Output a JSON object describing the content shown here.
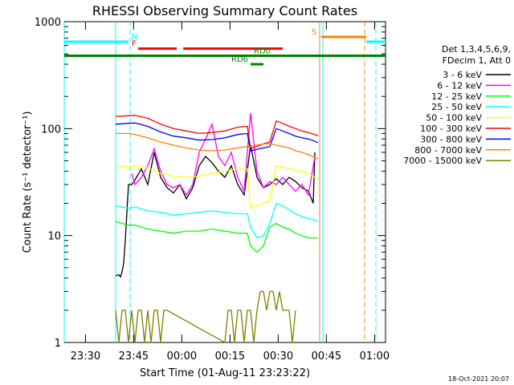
{
  "chart_data": {
    "type": "line",
    "title": "RHESSI Observing Summary Count Rates",
    "xlabel": "Start Time (01-Aug-11 23:23:22)",
    "ylabel": "Count Rate (s⁻¹ detector⁻¹)",
    "yscale": "log",
    "ylim": [
      1,
      1000
    ],
    "xlim_minutes": [
      0,
      100
    ],
    "x_unit": "minutes after 01-Aug-11 23:23:22",
    "x_ticks": [
      {
        "t": 6.6,
        "label": "23:30"
      },
      {
        "t": 21.6,
        "label": "23:45"
      },
      {
        "t": 36.6,
        "label": "00:00"
      },
      {
        "t": 51.6,
        "label": "00:15"
      },
      {
        "t": 66.6,
        "label": "00:30"
      },
      {
        "t": 81.6,
        "label": "00:45"
      },
      {
        "t": 96.6,
        "label": "01:00"
      }
    ],
    "y_ticks": [
      {
        "v": 1,
        "label": "1"
      },
      {
        "v": 10,
        "label": "10"
      },
      {
        "v": 100,
        "label": "100"
      },
      {
        "v": 1000,
        "label": "1000"
      }
    ],
    "legend": {
      "header1": "Det 1,3,4,5,6,9,",
      "header2": "FDecim 1, Att 0",
      "position": "right"
    },
    "series": [
      {
        "name": "3 - 6 keV",
        "color": "#000000",
        "x": [
          16,
          17,
          17.5,
          18,
          18.5,
          19,
          20,
          21,
          22,
          24,
          26,
          28,
          30,
          32,
          34,
          36,
          38,
          40,
          42,
          44,
          46,
          48,
          50,
          52,
          54,
          56,
          58,
          60,
          62,
          64,
          66,
          68,
          70,
          72,
          74,
          76,
          77.5,
          78
        ],
        "y": [
          4.2,
          4.3,
          4.1,
          4.6,
          5.5,
          9,
          30,
          30,
          33,
          42,
          30,
          60,
          35,
          28,
          25,
          30,
          22,
          28,
          45,
          55,
          48,
          40,
          35,
          45,
          30,
          24,
          70,
          35,
          28,
          30,
          34,
          30,
          35,
          32,
          28,
          26,
          20,
          60
        ]
      },
      {
        "name": "6 - 12 keV",
        "color": "#ff00ff",
        "x": [
          21,
          22,
          24,
          26,
          28,
          30,
          32,
          34,
          36,
          38,
          40,
          42,
          44,
          46,
          48,
          50,
          52,
          54,
          56,
          58,
          60,
          62,
          64,
          66,
          68,
          70,
          72,
          74,
          76,
          78
        ],
        "y": [
          38,
          30,
          35,
          45,
          65,
          40,
          30,
          28,
          30,
          24,
          30,
          60,
          80,
          110,
          55,
          45,
          60,
          35,
          26,
          140,
          40,
          28,
          32,
          30,
          35,
          30,
          26,
          30,
          24,
          55
        ]
      },
      {
        "name": "12 - 25 keV",
        "color": "#00ff00",
        "x": [
          16,
          20,
          22,
          26,
          30,
          34,
          38,
          42,
          46,
          50,
          54,
          57,
          58,
          60,
          62,
          64,
          66,
          68,
          70,
          72,
          74,
          76,
          78,
          79
        ],
        "y": [
          13.5,
          12.5,
          12.5,
          11.5,
          11,
          10.5,
          11,
          11,
          11.5,
          11,
          10.5,
          10.5,
          8,
          7,
          8,
          12,
          13,
          12,
          11.5,
          10.5,
          10,
          9.5,
          9.5,
          9.5
        ]
      },
      {
        "name": "25 - 50 keV",
        "color": "#00ffff",
        "x": [
          16,
          20,
          22,
          26,
          30,
          34,
          38,
          42,
          46,
          50,
          54,
          57,
          58,
          60,
          62,
          64,
          66,
          68,
          70,
          72,
          74,
          76,
          78,
          79
        ],
        "y": [
          19,
          18,
          18.5,
          17,
          16.5,
          15.5,
          16,
          16.5,
          17,
          16.5,
          16,
          16,
          12,
          9.5,
          10,
          13,
          20,
          19,
          17.5,
          16,
          15,
          14.5,
          14,
          13.5
        ]
      },
      {
        "name": "50 - 100 keV",
        "color": "#ffff00",
        "x": [
          16,
          20,
          22,
          26,
          30,
          34,
          38,
          42,
          46,
          50,
          54,
          57,
          58,
          60,
          62,
          64,
          66,
          68,
          70,
          72,
          74,
          76,
          78,
          79
        ],
        "y": [
          45,
          44,
          45,
          43,
          38,
          36,
          35,
          36,
          38,
          40,
          42,
          42,
          18,
          19,
          20,
          21,
          45,
          44,
          42,
          41,
          40,
          38,
          35,
          34
        ]
      },
      {
        "name": "100 - 300 keV",
        "color": "#ff0000",
        "x": [
          16,
          20,
          22,
          26,
          30,
          34,
          38,
          42,
          46,
          50,
          54,
          57,
          58,
          60,
          62,
          64,
          66,
          68,
          70,
          72,
          74,
          76,
          78,
          79
        ],
        "y": [
          130,
          132,
          133,
          125,
          110,
          100,
          95,
          90,
          92,
          95,
          103,
          105,
          65,
          68,
          72,
          75,
          118,
          112,
          105,
          100,
          95,
          92,
          88,
          86
        ]
      },
      {
        "name": "300 - 800 keV",
        "color": "#0000ff",
        "x": [
          16,
          20,
          22,
          26,
          30,
          34,
          38,
          42,
          46,
          50,
          54,
          57,
          58,
          60,
          62,
          64,
          66,
          68,
          70,
          72,
          74,
          76,
          78,
          79
        ],
        "y": [
          110,
          112,
          113,
          105,
          93,
          85,
          82,
          78,
          79,
          82,
          88,
          90,
          62,
          64,
          66,
          68,
          100,
          95,
          90,
          85,
          82,
          80,
          76,
          74
        ]
      },
      {
        "name": "800 - 7000 keV",
        "color": "#ff8000",
        "x": [
          16,
          20,
          22,
          26,
          30,
          34,
          38,
          42,
          46,
          50,
          54,
          57,
          58,
          60,
          62,
          64,
          66,
          68,
          70,
          72,
          74,
          76,
          78,
          79
        ],
        "y": [
          90,
          90,
          88,
          82,
          75,
          70,
          66,
          63,
          62,
          63,
          66,
          68,
          68,
          70,
          72,
          72,
          70,
          68,
          66,
          62,
          60,
          57,
          54,
          52
        ]
      },
      {
        "name": "7000 - 15000 keV",
        "color": "#808000",
        "x": [
          16,
          17,
          18,
          19,
          20,
          21,
          22,
          23,
          24,
          25,
          26,
          27,
          28,
          29,
          30,
          31,
          32,
          50,
          51,
          52,
          53,
          54,
          55,
          56,
          57,
          58,
          59,
          60,
          61,
          62,
          63,
          64,
          65,
          66,
          67,
          68,
          69,
          70,
          71,
          72
        ],
        "y": [
          2,
          1,
          2,
          2,
          1,
          2,
          1,
          2,
          2,
          1,
          2,
          1,
          2,
          2,
          1,
          2,
          2,
          1,
          2,
          2,
          1,
          2,
          2,
          1,
          2,
          2,
          1,
          2,
          3,
          3,
          2,
          3,
          3,
          2,
          3,
          2,
          2,
          2,
          1,
          2
        ]
      }
    ],
    "flags": [
      {
        "label": "N",
        "color": "#00ffff",
        "y": 650,
        "segments": [
          [
            0,
            20
          ]
        ],
        "label_t": 21
      },
      {
        "label": "F",
        "color": "#ff0000",
        "y": 560,
        "segments": [
          [
            23,
            35
          ],
          [
            37,
            68
          ]
        ],
        "label_t": 21
      },
      {
        "label": "S",
        "color": "#ff8000",
        "y": 720,
        "segments": [
          [
            80,
            94
          ]
        ],
        "label_t": 77
      },
      {
        "label": "",
        "color": "#00ffff",
        "y": 650,
        "segments": [
          [
            94,
            100
          ]
        ],
        "label_t": null
      },
      {
        "label": "RD0",
        "color": "#008000",
        "y": 480,
        "segments": [
          [
            0,
            100
          ]
        ],
        "label_t": 59
      },
      {
        "label": "RD6",
        "color": "#008000",
        "y": 400,
        "segments": [
          [
            58,
            62
          ]
        ],
        "label_t": 52
      }
    ],
    "vertical_markers": [
      {
        "t": 0,
        "color": "#00ffff",
        "style": "solid"
      },
      {
        "t": 16,
        "color": "#00ffff",
        "style": "solid"
      },
      {
        "t": 20.5,
        "color": "#00ffff",
        "style": "dashed"
      },
      {
        "t": 79.5,
        "color": "#ff8000",
        "style": "solid"
      },
      {
        "t": 80.5,
        "color": "#00ffff",
        "style": "solid"
      },
      {
        "t": 93.5,
        "color": "#ff8000",
        "style": "dashed"
      },
      {
        "t": 97,
        "color": "#00ffff",
        "style": "dashed"
      }
    ],
    "grid": false
  },
  "footer": {
    "timestamp": "18-Oct-2021 20:07"
  }
}
